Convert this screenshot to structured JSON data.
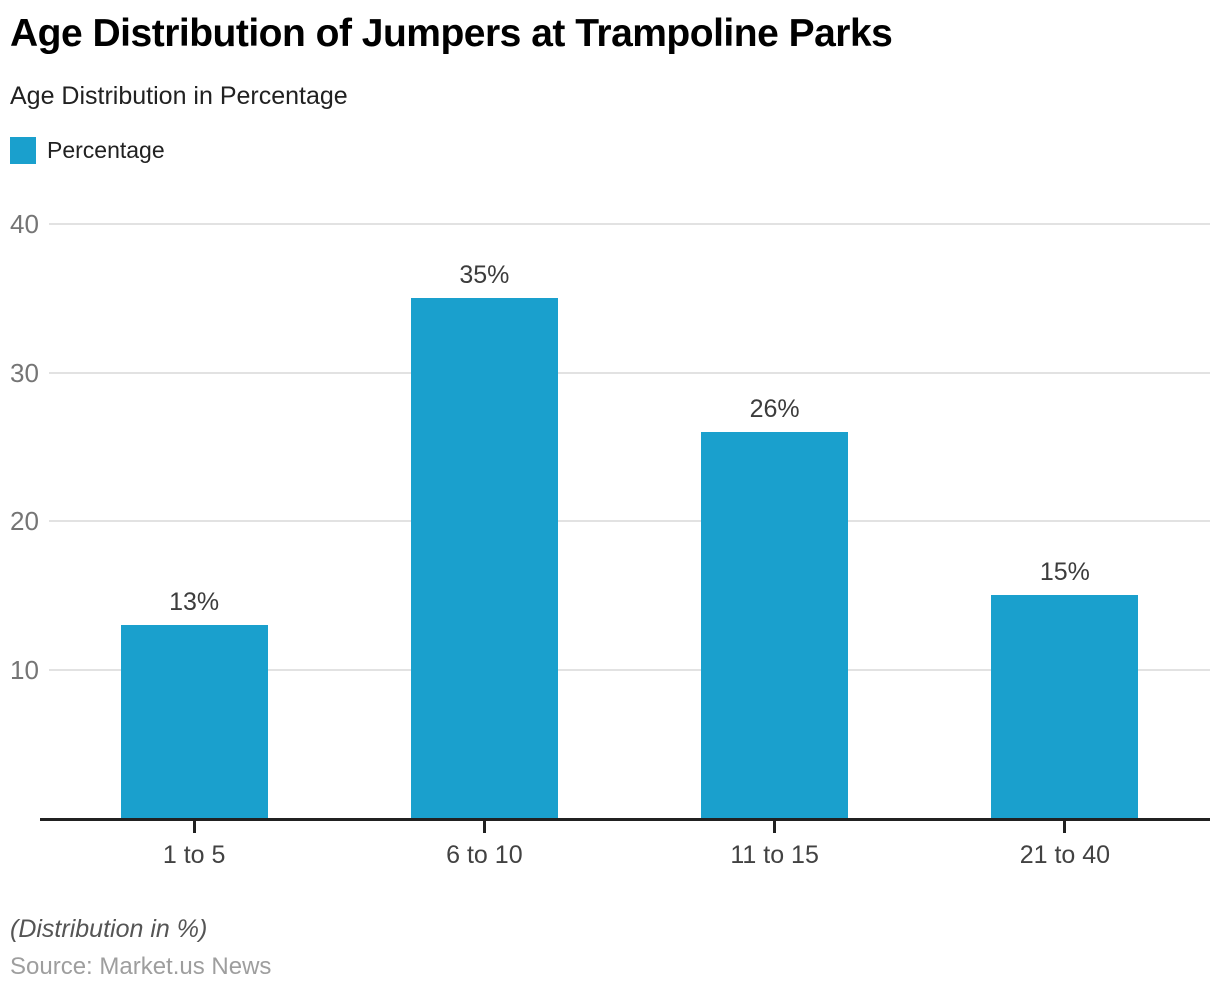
{
  "header": {
    "title": "Age Distribution of Jumpers at Trampoline Parks",
    "subtitle": "Age Distribution in Percentage"
  },
  "legend": {
    "label": "Percentage"
  },
  "footer": {
    "note": "(Distribution in %)",
    "source": "Source: Market.us News"
  },
  "colors": {
    "bar": "#1AA0CD",
    "grid": "#E2E2E2",
    "axis": "#212121",
    "y_label": "#757575",
    "x_label": "#424242",
    "value_label": "#3c3c3c"
  },
  "chart_data": {
    "type": "bar",
    "title": "Age Distribution of Jumpers at Trampoline Parks",
    "subtitle": "Age Distribution in Percentage",
    "categories": [
      "1 to 5",
      "6 to 10",
      "11 to 15",
      "21 to 40"
    ],
    "values": [
      13,
      35,
      26,
      15
    ],
    "data_labels": [
      "13%",
      "35%",
      "26%",
      "15%"
    ],
    "series_name": "Percentage",
    "value_suffix": "%",
    "xlabel": "",
    "ylabel": "",
    "ylim": [
      0,
      40
    ],
    "yticks": [
      10,
      20,
      30,
      40
    ],
    "grid": true,
    "legend_position": "top-left"
  }
}
